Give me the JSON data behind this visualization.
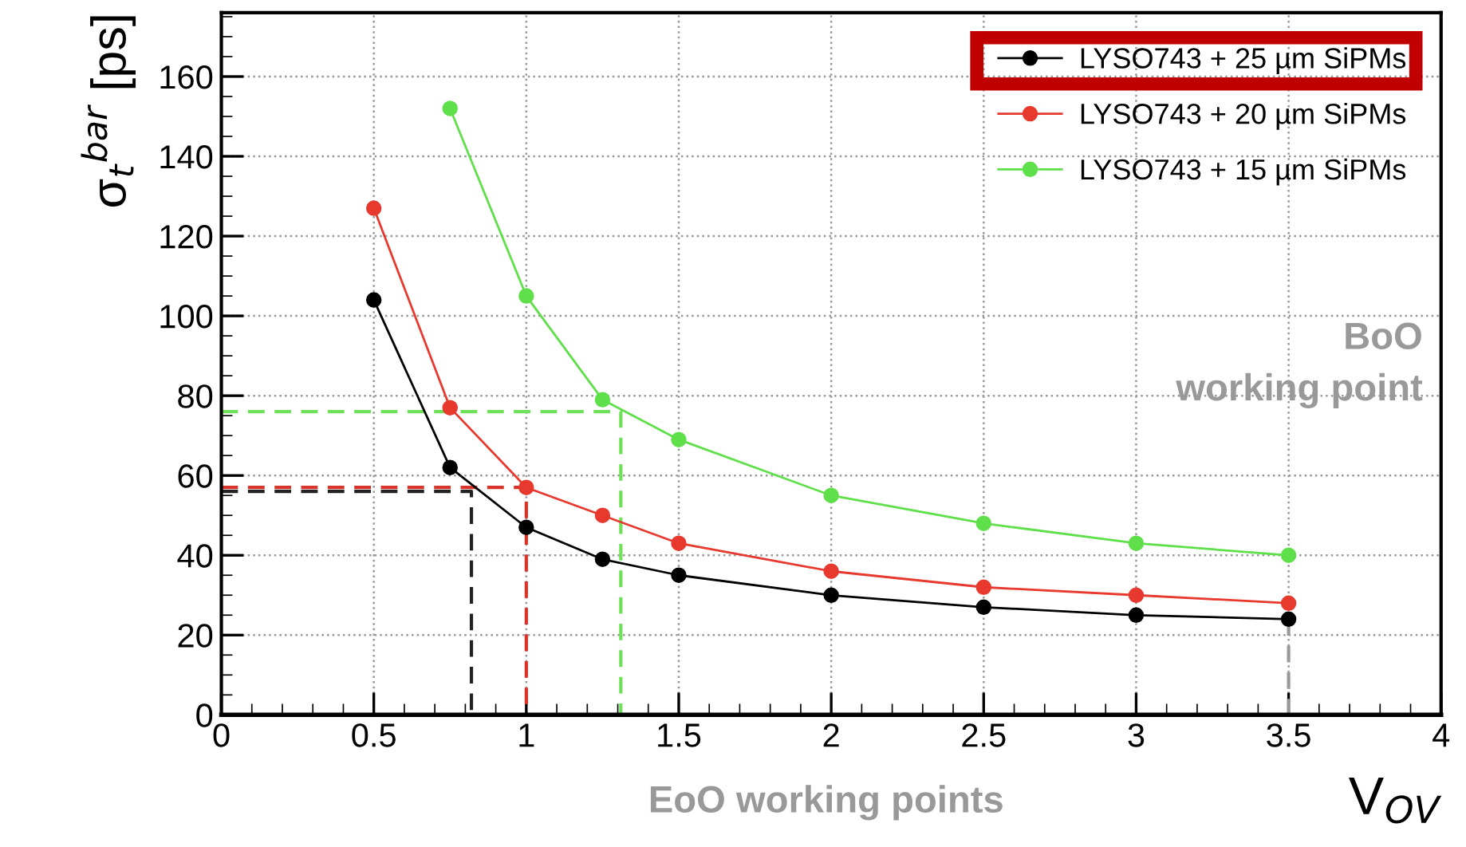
{
  "chart_data": {
    "type": "line",
    "xlabel": "V$_{OV}$",
    "ylabel": "σ$_{t}$$^{bar}$ [ps]",
    "xlim": [
      0,
      4
    ],
    "xticks": [
      0,
      0.5,
      1,
      1.5,
      2,
      2.5,
      3,
      3.5,
      4
    ],
    "ylim": [
      0,
      176
    ],
    "yticks": [
      0,
      20,
      40,
      60,
      80,
      100,
      120,
      140,
      160
    ],
    "grid": true,
    "legend": "top right",
    "marker": "circle",
    "line_style": "solid",
    "series": [
      {
        "name": "LYSO743 + 25 µm SiPMs",
        "color": "#000000",
        "x": [
          0.5,
          0.75,
          1,
          1.25,
          1.5,
          2,
          2.5,
          3,
          3.5
        ],
        "values": [
          104,
          62,
          47,
          39,
          35,
          30,
          27,
          25,
          24
        ]
      },
      {
        "name": "LYSO743 + 20 µm SiPMs",
        "color": "#e8392e",
        "x": [
          0.5,
          0.75,
          1,
          1.25,
          1.5,
          2,
          2.5,
          3,
          3.5
        ],
        "values": [
          127,
          77,
          57,
          50,
          43,
          36,
          32,
          30,
          28
        ]
      },
      {
        "name": "LYSO743 + 15 µm SiPMs",
        "color": "#5fe04a",
        "x": [
          0.75,
          1,
          1.25,
          1.5,
          2,
          2.5,
          3,
          3.5
        ],
        "values": [
          152,
          105,
          79,
          69,
          55,
          48,
          43,
          40
        ]
      },
      {
        "color": "#222222",
        "line_style": "dashed",
        "marker": "none",
        "x": [
          0,
          0.82,
          0.82
        ],
        "values": [
          56,
          56,
          0
        ]
      },
      {
        "color": "#d8342a",
        "line_style": "dashed",
        "marker": "none",
        "x": [
          0,
          1,
          1
        ],
        "values": [
          57,
          57,
          0
        ]
      },
      {
        "color": "#6ee05a",
        "line_style": "dashed",
        "marker": "none",
        "x": [
          0,
          1.31,
          1.31
        ],
        "values": [
          76,
          76,
          0
        ]
      },
      {
        "color": "#999999",
        "line_style": "dashed",
        "marker": "none",
        "x": [
          3.5,
          3.5
        ],
        "values": [
          24,
          0
        ]
      }
    ],
    "annotations": [
      "BoO\nworking point",
      "EoO working points"
    ]
  }
}
